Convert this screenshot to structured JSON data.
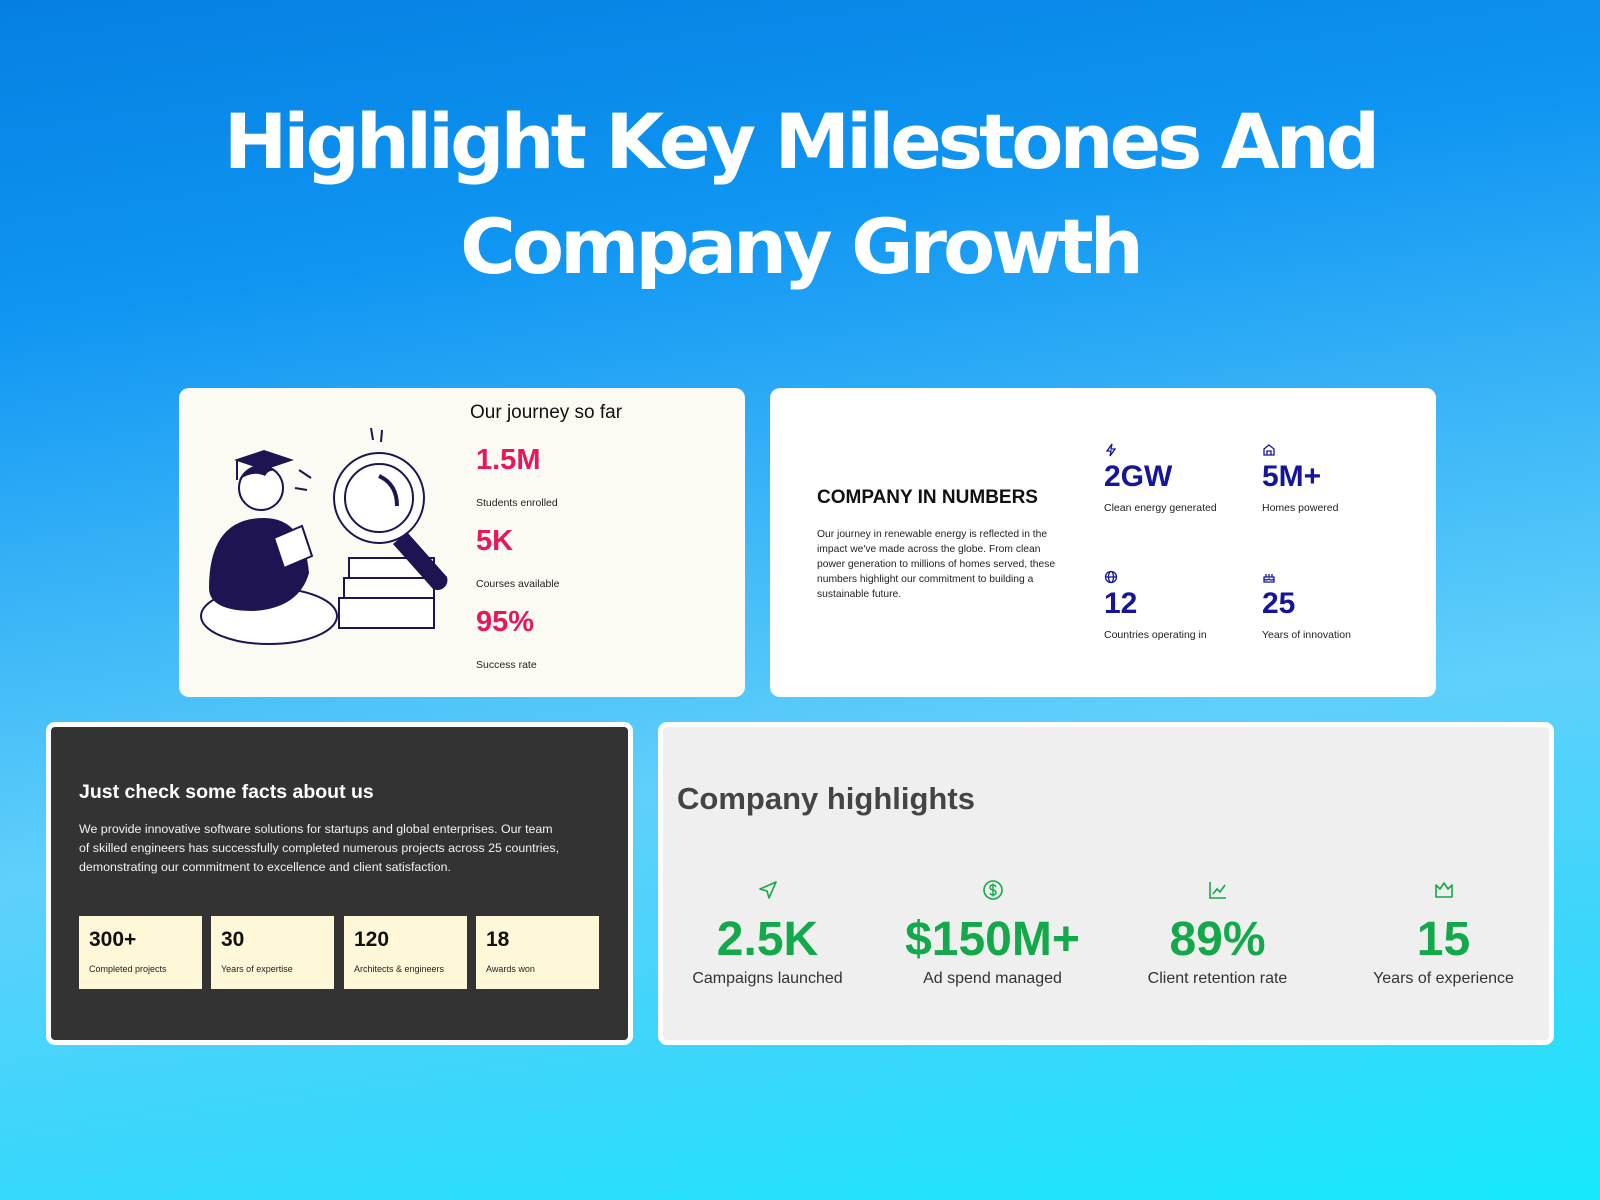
{
  "header": {
    "title_lines": [
      "Highlight Key Milestones And",
      "Company Growth"
    ]
  },
  "journey": {
    "title": "Our journey so far",
    "stats": [
      {
        "value": "1.5M",
        "label": "Students enrolled"
      },
      {
        "value": "5K",
        "label": "Courses available"
      },
      {
        "value": "95%",
        "label": "Success rate"
      }
    ]
  },
  "numbers": {
    "title": "COMPANY IN NUMBERS",
    "description": "Our journey in renewable energy is reflected in the impact we've made across the globe. From clean power generation to millions of homes served, these numbers highlight our commitment to building a sustainable future.",
    "stats": [
      {
        "value": "2GW",
        "label": "Clean energy generated"
      },
      {
        "value": "5M+",
        "label": "Homes powered"
      },
      {
        "value": "12",
        "label": "Countries operating in"
      },
      {
        "value": "25",
        "label": "Years of innovation"
      }
    ]
  },
  "facts": {
    "title": "Just check some facts about us",
    "description": "We provide innovative software solutions for startups and global enterprises. Our team of skilled engineers has successfully completed numerous projects across 25 countries, demonstrating our commitment to excellence and client satisfaction.",
    "stats": [
      {
        "value": "300+",
        "label": "Completed projects"
      },
      {
        "value": "30",
        "label": "Years of expertise"
      },
      {
        "value": "120",
        "label": "Architects & engineers"
      },
      {
        "value": "18",
        "label": "Awards won"
      }
    ]
  },
  "highlights": {
    "title": "Company highlights",
    "stats": [
      {
        "value": "2.5K",
        "label": "Campaigns launched"
      },
      {
        "value": "$150M+",
        "label": "Ad spend managed"
      },
      {
        "value": "89%",
        "label": "Client retention rate"
      },
      {
        "value": "15",
        "label": "Years of experience"
      }
    ]
  }
}
